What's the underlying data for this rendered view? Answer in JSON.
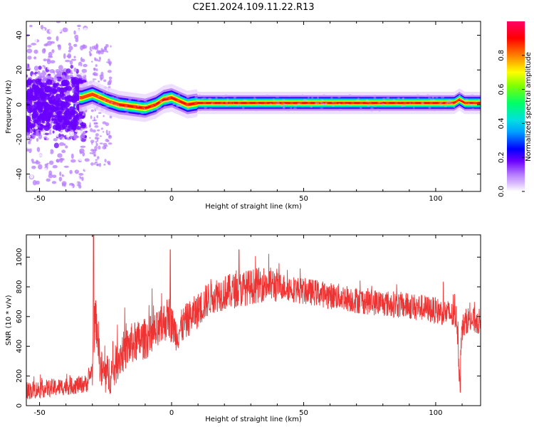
{
  "title": "C2E1.2024.109.11.22.R13",
  "chart_data": [
    {
      "type": "heatmap",
      "xlabel": "Height of straight line (km)",
      "ylabel": "Frequency (Hz)",
      "xlim": [
        -55,
        117
      ],
      "ylim": [
        -50,
        48
      ],
      "x_ticks": [
        -50,
        0,
        50,
        100
      ],
      "x_tick_labels": [
        "-50",
        "0",
        "50",
        "100"
      ],
      "y_ticks": [
        40,
        20,
        0,
        -20,
        -40
      ],
      "y_tick_labels": [
        "40",
        "20",
        "0",
        "-20",
        "-40"
      ],
      "colorbar": {
        "label": "Normalized spectral amplitude",
        "range": [
          0,
          1
        ],
        "ticks": [
          0,
          0.2,
          0.4,
          0.6,
          0.8
        ],
        "tick_labels": [
          "0.0",
          "0.2",
          "0.4",
          "0.6",
          "0.8"
        ],
        "colormap": [
          "#ffffff",
          "#b57bff",
          "#6a00ff",
          "#0000ff",
          "#00c8ff",
          "#00ff66",
          "#7fff00",
          "#ffff00",
          "#ff8000",
          "#ff0000",
          "#ff0066"
        ]
      },
      "ridge": {
        "description_points_x": [
          -34,
          -30,
          -27,
          -24,
          -20,
          -15,
          -10,
          -6,
          -3,
          0,
          3,
          6,
          10,
          20,
          50,
          100,
          107,
          109,
          111,
          117
        ],
        "description_points_freq": [
          4,
          6,
          4,
          2,
          0,
          -1,
          -2,
          0,
          3,
          4,
          2,
          0,
          1,
          1,
          1,
          1,
          1,
          3,
          1,
          1
        ]
      },
      "grid": false
    },
    {
      "type": "line",
      "xlabel": "Height of straight line (km)",
      "ylabel": "SNR (10 * v/v)",
      "xlim": [
        -55,
        117
      ],
      "ylim": [
        0,
        1150
      ],
      "x_ticks": [
        -50,
        0,
        50,
        100
      ],
      "x_tick_labels": [
        "-50",
        "0",
        "50",
        "100"
      ],
      "y_ticks": [
        0,
        200,
        400,
        600,
        800,
        1000
      ],
      "y_tick_labels": [
        "0",
        "200",
        "400",
        "600",
        "800",
        "1000"
      ],
      "color": "#ee3333",
      "series": [
        {
          "x": [
            -55,
            -50,
            -45,
            -40,
            -35,
            -32,
            -30,
            -29,
            -28,
            -27,
            -25,
            -22,
            -20,
            -15,
            -10,
            -5,
            -3,
            -1,
            0,
            2,
            5,
            8,
            10,
            15,
            20,
            25,
            30,
            35,
            40,
            45,
            50,
            55,
            60,
            65,
            70,
            75,
            80,
            85,
            90,
            95,
            100,
            105,
            108,
            109,
            110,
            112,
            115,
            117
          ],
          "values": [
            100,
            110,
            120,
            130,
            140,
            150,
            250,
            600,
            500,
            250,
            200,
            230,
            330,
            420,
            450,
            500,
            560,
            600,
            550,
            480,
            560,
            610,
            640,
            740,
            760,
            780,
            800,
            820,
            810,
            790,
            770,
            760,
            740,
            730,
            710,
            700,
            690,
            680,
            670,
            660,
            640,
            620,
            590,
            200,
            520,
            580,
            570,
            560
          ]
        }
      ],
      "grid": false
    }
  ]
}
